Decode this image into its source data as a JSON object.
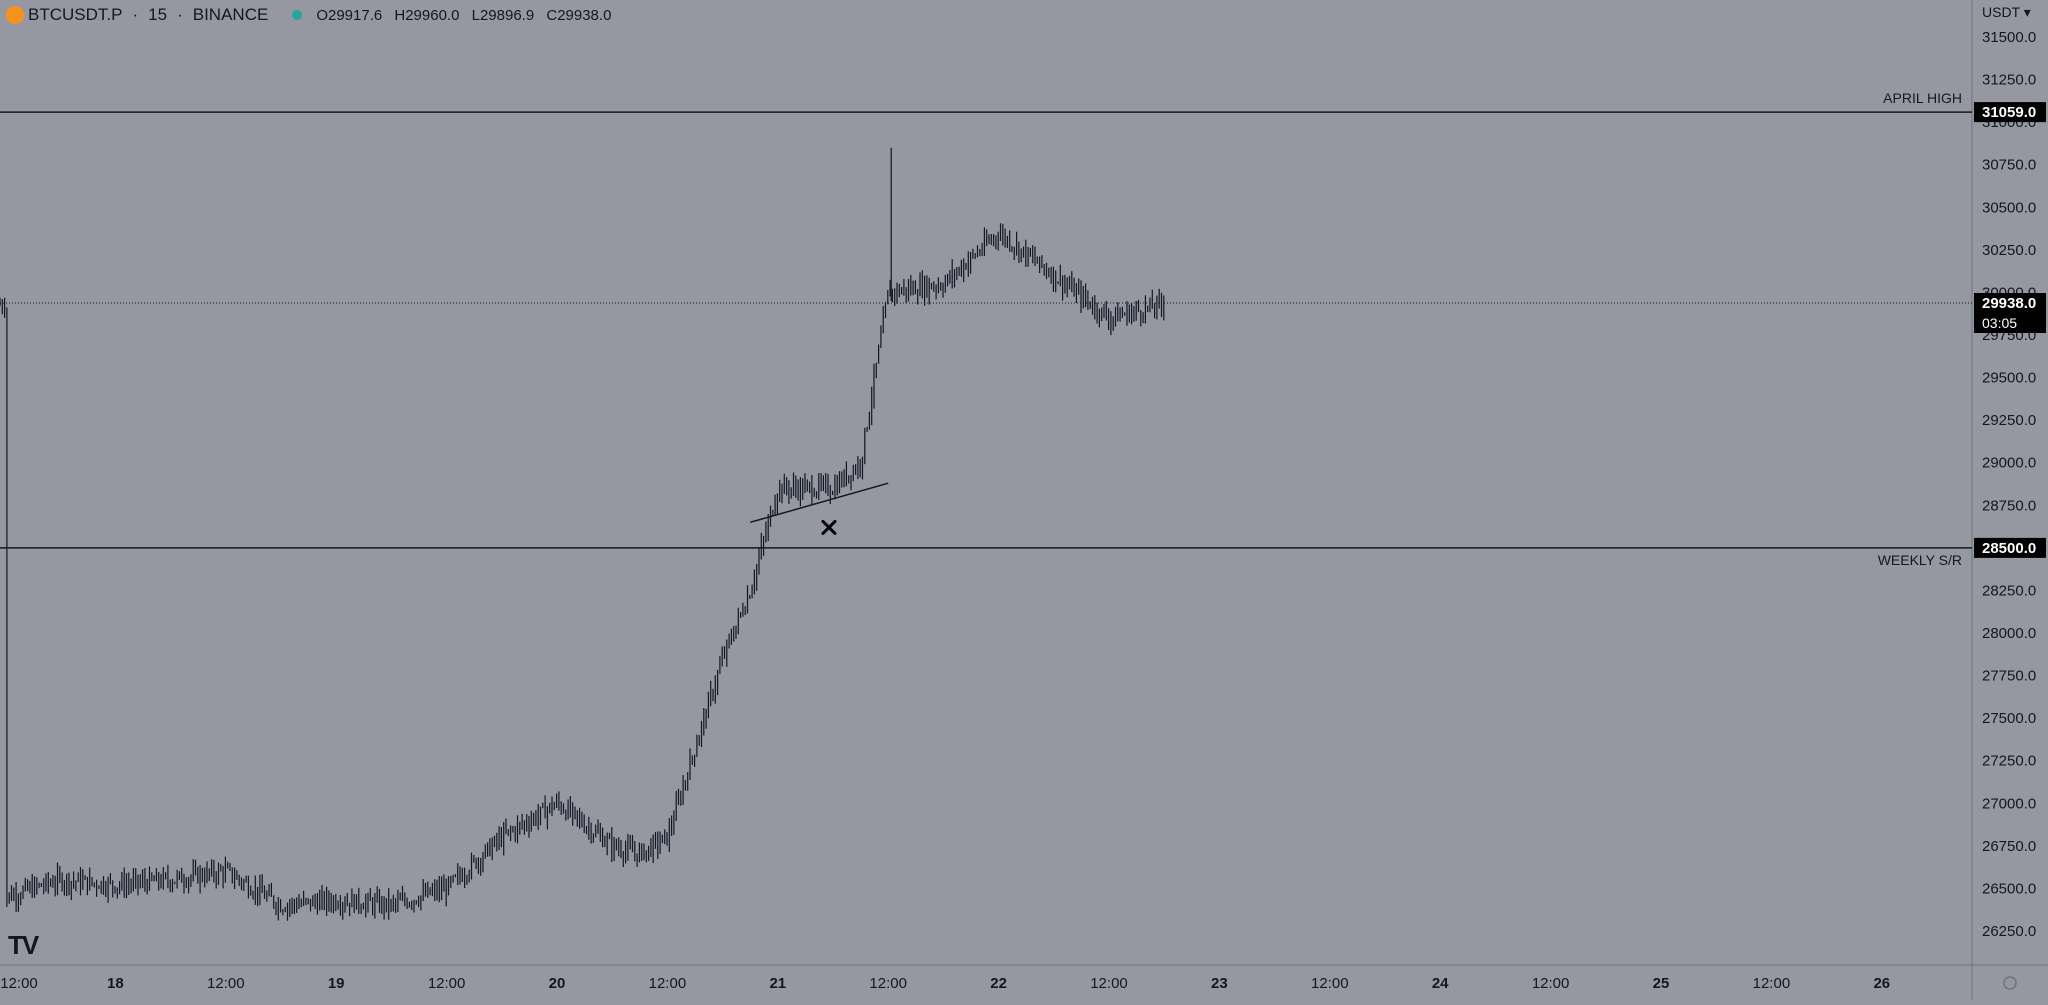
{
  "header": {
    "symbol": "BTCUSDT.P",
    "interval": "15",
    "exchange": "BINANCE",
    "open": "O29917.6",
    "high": "H29960.0",
    "low": "L29896.9",
    "close": "C29938.0"
  },
  "price_axis": {
    "currency": "USDT",
    "ticks": [
      "26250.0",
      "26500.0",
      "26750.0",
      "27000.0",
      "27250.0",
      "27500.0",
      "27750.0",
      "28000.0",
      "28250.0",
      "28500.0",
      "28750.0",
      "29000.0",
      "29250.0",
      "29500.0",
      "29750.0",
      "30000.0",
      "30250.0",
      "30500.0",
      "30750.0",
      "31000.0",
      "31250.0",
      "31500.0"
    ]
  },
  "time_axis": {
    "ticks": [
      "12:00",
      "18",
      "12:00",
      "19",
      "12:00",
      "20",
      "12:00",
      "21",
      "12:00",
      "22",
      "12:00",
      "23",
      "12:00",
      "24",
      "12:00",
      "25",
      "12:00",
      "26"
    ]
  },
  "current_price": {
    "value": "29938.0",
    "countdown": "03:05"
  },
  "annotations": [
    {
      "label": "APRIL HIGH",
      "price_label": "31059.0"
    },
    {
      "label": "WEEKLY S/R",
      "price_label": "28500.0"
    }
  ],
  "colors": {
    "background": "#9598a1",
    "candle": "#131722",
    "line": "#131722",
    "axis_text": "#131722",
    "price_label_bg": "#000000",
    "price_label_text": "#ffffff",
    "status_dot": "#26a69a",
    "symbol_icon": "#f7931a"
  },
  "chart_data": {
    "type": "line",
    "title": "BTCUSDT.P · 15 · BINANCE",
    "xlabel": "",
    "ylabel": "",
    "ylim": [
      26050,
      31700
    ],
    "x_range": [
      "17 12:00",
      "26"
    ],
    "grid": false,
    "series": [
      {
        "x": [
          "17 12:00",
          "17 18:00",
          "18 00:00",
          "18 06:00",
          "18 12:00",
          "18 18:00",
          "19 00:00",
          "19 06:00",
          "19 12:00",
          "19 18:00",
          "20 00:00",
          "20 06:00",
          "20 09:00",
          "20 12:00",
          "20 18:00",
          "20 21:00",
          "21 00:00",
          "21 06:00",
          "21 09:00",
          "21 12:00",
          "21 18:00",
          "22 00:00",
          "22 06:00",
          "22 12:00",
          "22 18:00"
        ],
        "values": [
          26450,
          26550,
          26520,
          26550,
          26600,
          26400,
          26430,
          26400,
          26500,
          26800,
          27000,
          26750,
          26700,
          26800,
          27850,
          28250,
          28850,
          28850,
          29000,
          30000,
          30050,
          30350,
          30100,
          29850,
          29930
        ]
      }
    ],
    "horizontal_lines": [
      {
        "label": "APRIL HIGH",
        "value": 31059.0
      },
      {
        "label": "WEEKLY S/R",
        "value": 28500.0
      },
      {
        "label": "",
        "value": 29938.0,
        "style": "dotted"
      }
    ],
    "trendline": {
      "from": [
        "20 21:00",
        28650
      ],
      "to": [
        "21 12:00",
        28880
      ]
    },
    "marker": {
      "symbol": "x",
      "x": "21 06:00",
      "y": 28620
    }
  }
}
